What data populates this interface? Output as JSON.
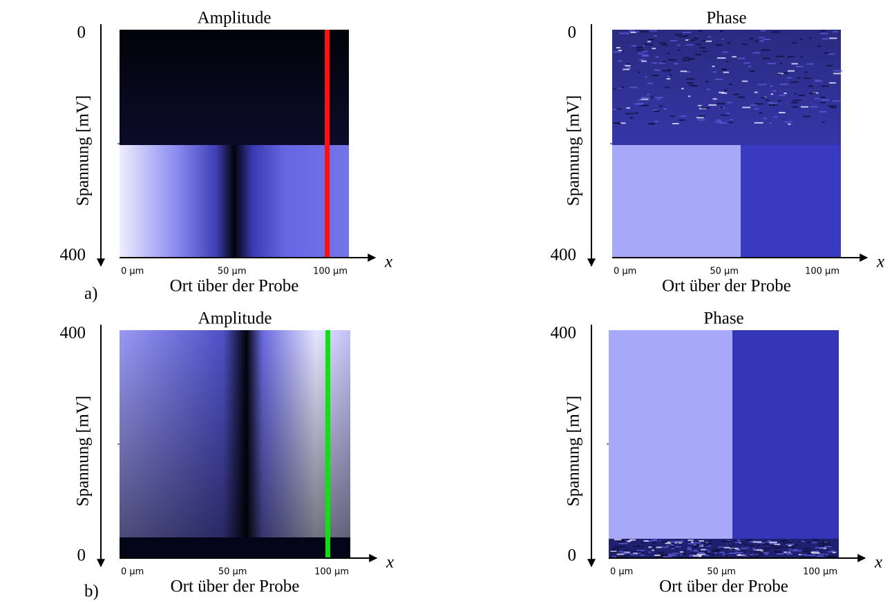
{
  "rows": [
    {
      "label": "a)",
      "panels": [
        {
          "title": "Amplitude",
          "y_label": "Spannung [mV]",
          "y_ticks": [
            0,
            400
          ],
          "x_ticks": [
            "0 µm",
            "50 µm",
            "100 µm"
          ],
          "x_label": "Ort über der Probe",
          "x_axis": "x"
        },
        {
          "title": "Phase",
          "y_label": "Spannung [mV]",
          "y_ticks": [
            0,
            400
          ],
          "x_ticks": [
            "0 µm",
            "50 µm",
            "100 µm"
          ],
          "x_label": "Ort über der Probe",
          "x_axis": "x"
        }
      ]
    },
    {
      "label": "b)",
      "panels": [
        {
          "title": "Amplitude",
          "y_label": "Spannung [mV]",
          "y_ticks": [
            400,
            0
          ],
          "x_ticks": [
            "0 µm",
            "50 µm",
            "100 µm"
          ],
          "x_label": "Ort über der Probe",
          "x_axis": "x"
        },
        {
          "title": "Phase",
          "y_label": "Spannung [mV]",
          "y_ticks": [
            400,
            0
          ],
          "x_ticks": [
            "0 µm",
            "50 µm",
            "100 µm"
          ],
          "x_label": "Ort über der Probe",
          "x_axis": "x"
        }
      ]
    }
  ]
}
